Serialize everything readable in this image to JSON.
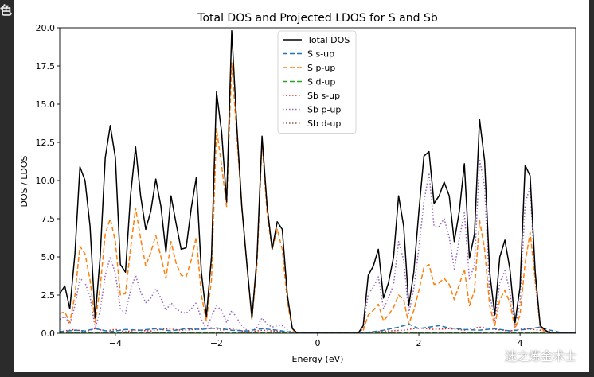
{
  "corner_glyph": "色",
  "watermark": {
    "text": "迷之炼金术士"
  },
  "chart_data": {
    "type": "line",
    "title": "Total DOS and Projected LDOS for S and Sb",
    "xlabel": "Energy (eV)",
    "ylabel": "DOS / LDOS",
    "xlim": [
      -5.1,
      5.1
    ],
    "ylim": [
      0,
      20
    ],
    "xticks": [
      -4,
      -2,
      0,
      2,
      4
    ],
    "xtick_labels": [
      "−4",
      "−2",
      "0",
      "2",
      "4"
    ],
    "yticks": [
      0,
      2.5,
      5,
      7.5,
      10,
      12.5,
      15,
      17.5,
      20
    ],
    "ytick_labels": [
      "0.0",
      "2.5",
      "5.0",
      "7.5",
      "10.0",
      "12.5",
      "15.0",
      "17.5",
      "20.0"
    ],
    "grid": false,
    "legend_placement": "top-center",
    "series": [
      {
        "name": "Total DOS",
        "color": "#000000",
        "style": "solid",
        "x": [
          -5.1,
          -5.0,
          -4.9,
          -4.8,
          -4.7,
          -4.6,
          -4.5,
          -4.4,
          -4.3,
          -4.2,
          -4.1,
          -4.0,
          -3.9,
          -3.8,
          -3.7,
          -3.6,
          -3.5,
          -3.4,
          -3.3,
          -3.2,
          -3.1,
          -3.0,
          -2.9,
          -2.8,
          -2.7,
          -2.6,
          -2.5,
          -2.4,
          -2.3,
          -2.2,
          -2.1,
          -2.0,
          -1.9,
          -1.8,
          -1.7,
          -1.6,
          -1.5,
          -1.4,
          -1.3,
          -1.2,
          -1.1,
          -1.0,
          -0.9,
          -0.8,
          -0.7,
          -0.6,
          -0.5,
          -0.4,
          0.8,
          0.9,
          1.0,
          1.1,
          1.2,
          1.3,
          1.4,
          1.5,
          1.6,
          1.7,
          1.8,
          1.9,
          2.0,
          2.1,
          2.2,
          2.3,
          2.4,
          2.5,
          2.6,
          2.7,
          2.8,
          2.9,
          3.0,
          3.1,
          3.2,
          3.3,
          3.4,
          3.5,
          3.6,
          3.7,
          3.8,
          3.9,
          4.0,
          4.1,
          4.2,
          4.3,
          4.4,
          4.5,
          4.6,
          4.7,
          4.8,
          5.1
        ],
        "y": [
          2.6,
          3.1,
          1.6,
          5.2,
          10.9,
          10.0,
          7.0,
          1.0,
          5.0,
          11.5,
          13.6,
          11.5,
          4.5,
          4.0,
          9.0,
          12.2,
          9.0,
          6.8,
          8.0,
          10.1,
          8.3,
          5.3,
          9.0,
          7.2,
          5.5,
          5.6,
          8.2,
          10.2,
          4.0,
          1.1,
          5.0,
          15.8,
          13.2,
          8.6,
          19.8,
          13.6,
          8.3,
          4.5,
          1.0,
          5.0,
          12.9,
          8.3,
          5.5,
          7.3,
          6.8,
          2.5,
          0.3,
          0.0,
          0.0,
          0.5,
          3.8,
          4.4,
          5.5,
          2.3,
          3.3,
          5.0,
          9.0,
          7.0,
          1.8,
          4.0,
          8.0,
          11.6,
          11.9,
          8.5,
          9.0,
          9.9,
          9.0,
          6.0,
          8.0,
          11.1,
          4.9,
          6.5,
          14.0,
          11.3,
          4.0,
          1.2,
          5.0,
          6.1,
          4.2,
          0.7,
          3.0,
          11.0,
          10.3,
          4.0,
          0.5,
          0.2,
          0.0,
          0.0,
          0.0,
          0.0
        ]
      },
      {
        "name": "S s-up",
        "color": "#1f77b4",
        "style": "dashed",
        "x": [
          -5.1,
          -4.8,
          -4.6,
          -4.4,
          -4.1,
          -3.8,
          -3.5,
          -3.2,
          -2.9,
          -2.6,
          -2.3,
          -2.0,
          -1.7,
          -1.4,
          -1.1,
          -0.8,
          -0.5,
          0.8,
          1.0,
          1.3,
          1.6,
          1.8,
          2.0,
          2.2,
          2.4,
          2.6,
          2.9,
          3.2,
          3.5,
          3.8,
          4.1,
          4.4,
          4.6,
          4.8,
          5.1
        ],
        "y": [
          0.1,
          0.2,
          0.15,
          0.3,
          0.1,
          0.25,
          0.2,
          0.3,
          0.15,
          0.3,
          0.25,
          0.35,
          0.2,
          0.15,
          0.3,
          0.2,
          0.05,
          0.0,
          0.05,
          0.2,
          0.4,
          0.6,
          0.3,
          0.4,
          0.5,
          0.35,
          0.25,
          0.2,
          0.3,
          0.15,
          0.25,
          0.4,
          0.2,
          0.05,
          0.0
        ]
      },
      {
        "name": "S p-up",
        "color": "#ff7f0e",
        "style": "dashed",
        "x": [
          -5.1,
          -5.0,
          -4.9,
          -4.8,
          -4.7,
          -4.6,
          -4.5,
          -4.4,
          -4.3,
          -4.2,
          -4.1,
          -4.0,
          -3.9,
          -3.8,
          -3.7,
          -3.6,
          -3.5,
          -3.4,
          -3.3,
          -3.2,
          -3.1,
          -3.0,
          -2.9,
          -2.8,
          -2.7,
          -2.6,
          -2.5,
          -2.4,
          -2.3,
          -2.2,
          -2.1,
          -2.0,
          -1.9,
          -1.8,
          -1.7,
          -1.6,
          -1.5,
          -1.4,
          -1.3,
          -1.2,
          -1.1,
          -1.0,
          -0.9,
          -0.8,
          -0.7,
          -0.6,
          -0.5,
          -0.4,
          0.8,
          0.9,
          1.0,
          1.1,
          1.2,
          1.3,
          1.4,
          1.5,
          1.6,
          1.7,
          1.8,
          1.9,
          2.0,
          2.1,
          2.2,
          2.3,
          2.4,
          2.5,
          2.6,
          2.7,
          2.8,
          2.9,
          3.0,
          3.1,
          3.2,
          3.3,
          3.4,
          3.5,
          3.6,
          3.7,
          3.8,
          3.9,
          4.0,
          4.1,
          4.2,
          4.3,
          4.4,
          4.5,
          4.6,
          4.7,
          4.8,
          5.1
        ],
        "y": [
          1.3,
          1.4,
          0.7,
          2.5,
          5.7,
          5.2,
          3.5,
          0.7,
          3.0,
          6.5,
          7.5,
          6.0,
          2.5,
          2.6,
          5.5,
          8.2,
          6.2,
          4.4,
          5.3,
          6.4,
          5.0,
          3.6,
          6.0,
          4.6,
          3.8,
          3.7,
          4.8,
          6.3,
          2.5,
          0.8,
          3.5,
          13.4,
          11.0,
          8.3,
          17.7,
          13.0,
          8.2,
          4.5,
          0.9,
          4.5,
          12.6,
          7.8,
          5.5,
          6.8,
          5.5,
          2.1,
          0.2,
          0.0,
          0.0,
          0.2,
          1.2,
          1.5,
          1.9,
          0.8,
          1.2,
          1.7,
          2.5,
          2.2,
          0.6,
          1.5,
          2.8,
          4.3,
          4.5,
          3.2,
          3.3,
          3.6,
          3.2,
          2.2,
          3.2,
          4.2,
          1.8,
          2.8,
          7.4,
          5.5,
          1.8,
          0.5,
          2.2,
          2.8,
          2.0,
          0.3,
          1.2,
          4.6,
          6.6,
          3.5,
          0.4,
          0.1,
          0.0,
          0.0,
          0.0,
          0.0
        ]
      },
      {
        "name": "S d-up",
        "color": "#2ca02c",
        "style": "dashed",
        "x": [
          -5.1,
          -4.5,
          -4.0,
          -3.5,
          -3.0,
          -2.5,
          -2.0,
          -1.5,
          -1.0,
          -0.5,
          0.8,
          1.5,
          2.0,
          2.5,
          3.0,
          3.5,
          4.0,
          4.5,
          5.1
        ],
        "y": [
          0.02,
          0.03,
          0.04,
          0.03,
          0.04,
          0.03,
          0.05,
          0.05,
          0.04,
          0.01,
          0.0,
          0.02,
          0.04,
          0.03,
          0.04,
          0.05,
          0.03,
          0.02,
          0.0
        ]
      },
      {
        "name": "Sb s-up",
        "color": "#d62728",
        "style": "dotted",
        "x": [
          -5.1,
          -4.8,
          -4.6,
          -4.4,
          -4.2,
          -4.0,
          -3.8,
          -3.6,
          -3.3,
          -3.0,
          -2.7,
          -2.4,
          -2.1,
          -1.9,
          -1.7,
          -1.5,
          -1.3,
          -1.1,
          -0.9,
          -0.6,
          -0.4,
          0.8,
          1.1,
          1.4,
          1.7,
          2.0,
          2.3,
          2.6,
          2.9,
          3.2,
          3.5,
          3.8,
          4.1,
          4.4,
          4.7,
          5.1
        ],
        "y": [
          0.1,
          0.25,
          0.1,
          0.3,
          0.15,
          0.25,
          0.1,
          0.2,
          0.15,
          0.3,
          0.2,
          0.25,
          0.35,
          0.2,
          0.3,
          0.15,
          0.1,
          0.2,
          0.15,
          0.05,
          0.0,
          0.0,
          0.1,
          0.15,
          0.2,
          0.35,
          0.25,
          0.3,
          0.2,
          0.4,
          0.25,
          0.15,
          0.3,
          0.2,
          0.05,
          0.0
        ]
      },
      {
        "name": "Sb p-up",
        "color": "#9467bd",
        "style": "dotted",
        "x": [
          -5.1,
          -5.0,
          -4.9,
          -4.8,
          -4.7,
          -4.6,
          -4.5,
          -4.4,
          -4.3,
          -4.2,
          -4.1,
          -4.0,
          -3.9,
          -3.8,
          -3.7,
          -3.6,
          -3.5,
          -3.4,
          -3.3,
          -3.2,
          -3.1,
          -3.0,
          -2.9,
          -2.8,
          -2.7,
          -2.6,
          -2.5,
          -2.4,
          -2.3,
          -2.2,
          -2.1,
          -2.0,
          -1.9,
          -1.8,
          -1.7,
          -1.6,
          -1.5,
          -1.4,
          -1.3,
          -1.2,
          -1.1,
          -1.0,
          -0.9,
          -0.8,
          -0.7,
          -0.6,
          -0.5,
          -0.4,
          0.8,
          0.9,
          1.0,
          1.1,
          1.2,
          1.3,
          1.4,
          1.5,
          1.6,
          1.7,
          1.8,
          1.9,
          2.0,
          2.1,
          2.2,
          2.3,
          2.4,
          2.5,
          2.6,
          2.7,
          2.8,
          2.9,
          3.0,
          3.1,
          3.2,
          3.3,
          3.4,
          3.5,
          3.6,
          3.7,
          3.8,
          3.9,
          4.0,
          4.1,
          4.2,
          4.3,
          4.4,
          4.5,
          4.6,
          4.7,
          4.8,
          5.1
        ],
        "y": [
          0.9,
          1.1,
          0.6,
          1.8,
          3.6,
          3.3,
          2.4,
          0.3,
          1.5,
          3.8,
          5.0,
          3.9,
          1.6,
          1.3,
          2.8,
          3.8,
          2.7,
          2.0,
          2.3,
          2.9,
          2.3,
          1.5,
          2.0,
          1.6,
          1.4,
          1.3,
          1.6,
          2.0,
          0.9,
          0.3,
          1.1,
          1.8,
          1.5,
          0.7,
          1.5,
          1.0,
          0.5,
          0.2,
          0.1,
          0.4,
          1.0,
          0.6,
          0.4,
          0.5,
          0.5,
          0.2,
          0.05,
          0.0,
          0.0,
          0.3,
          2.6,
          3.0,
          3.7,
          1.6,
          2.3,
          3.2,
          6.0,
          4.8,
          1.3,
          2.9,
          5.6,
          8.6,
          10.5,
          7.0,
          7.0,
          7.5,
          6.3,
          4.2,
          6.2,
          7.9,
          3.5,
          4.5,
          11.4,
          9.6,
          2.6,
          0.8,
          3.3,
          4.1,
          2.7,
          0.4,
          2.0,
          8.5,
          9.6,
          3.3,
          0.4,
          0.1,
          0.0,
          0.0,
          0.0,
          0.0
        ]
      },
      {
        "name": "Sb d-up",
        "color": "#8c564b",
        "style": "dotted",
        "x": [
          -5.1,
          -4.5,
          -4.0,
          -3.5,
          -3.0,
          -2.5,
          -2.0,
          -1.5,
          -1.0,
          -0.5,
          0.8,
          1.5,
          2.0,
          2.5,
          3.0,
          3.5,
          4.0,
          4.5,
          5.1
        ],
        "y": [
          0.03,
          0.05,
          0.06,
          0.05,
          0.06,
          0.05,
          0.07,
          0.06,
          0.05,
          0.02,
          0.0,
          0.03,
          0.05,
          0.05,
          0.06,
          0.07,
          0.05,
          0.03,
          0.0
        ]
      }
    ]
  }
}
